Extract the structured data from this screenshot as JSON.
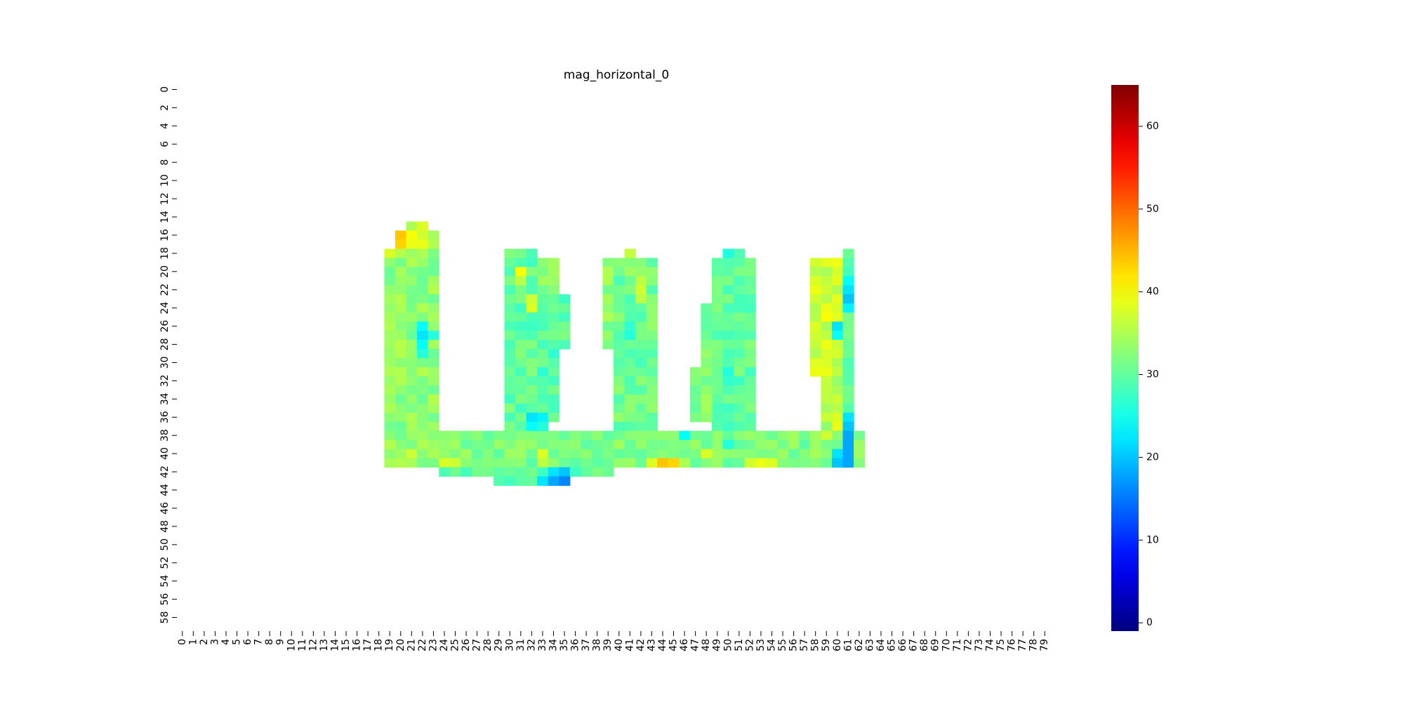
{
  "chart_data": {
    "type": "heatmap",
    "title": "mag_horizontal_0",
    "xlabel": "",
    "ylabel": "",
    "rows": 60,
    "cols": 80,
    "x_tick_labels": [
      "0",
      "1",
      "2",
      "3",
      "4",
      "5",
      "6",
      "7",
      "8",
      "9",
      "10",
      "11",
      "12",
      "13",
      "14",
      "15",
      "16",
      "17",
      "18",
      "19",
      "20",
      "21",
      "22",
      "23",
      "24",
      "25",
      "26",
      "27",
      "28",
      "29",
      "30",
      "31",
      "32",
      "33",
      "34",
      "35",
      "36",
      "37",
      "38",
      "39",
      "40",
      "41",
      "42",
      "43",
      "44",
      "45",
      "46",
      "47",
      "48",
      "49",
      "50",
      "51",
      "52",
      "53",
      "54",
      "55",
      "56",
      "57",
      "58",
      "59",
      "60",
      "61",
      "62",
      "63",
      "64",
      "65",
      "66",
      "67",
      "68",
      "69",
      "70",
      "71",
      "72",
      "73",
      "74",
      "75",
      "76",
      "77",
      "78",
      "79"
    ],
    "y_tick_labels": [
      "0",
      "2",
      "4",
      "6",
      "8",
      "10",
      "12",
      "14",
      "16",
      "18",
      "20",
      "22",
      "24",
      "26",
      "28",
      "30",
      "32",
      "34",
      "36",
      "38",
      "40",
      "42",
      "44",
      "46",
      "48",
      "50",
      "52",
      "54",
      "56",
      "58"
    ],
    "colormap": "jet",
    "colorbar": {
      "min": -1,
      "max": 65,
      "ticks": [
        0,
        10,
        20,
        30,
        40,
        50,
        60
      ]
    },
    "default_value": 31,
    "cells_note": "sparse list of [row, col, value]; regions listed by row ranges",
    "regions": [
      {
        "rows": [
          15,
          15
        ],
        "cols": [
          21,
          22
        ],
        "value": 37
      },
      {
        "rows": [
          16,
          17
        ],
        "cols": [
          20,
          23
        ],
        "value": 37
      },
      {
        "rows": [
          18,
          41
        ],
        "cols": [
          19,
          23
        ],
        "value": 33
      },
      {
        "rows": [
          18,
          37
        ],
        "cols": [
          30,
          32
        ],
        "value": 30
      },
      {
        "rows": [
          19,
          22
        ],
        "cols": [
          33,
          34
        ],
        "value": 32
      },
      {
        "rows": [
          23,
          28
        ],
        "cols": [
          33,
          35
        ],
        "value": 30
      },
      {
        "rows": [
          29,
          36
        ],
        "cols": [
          33,
          34
        ],
        "value": 29
      },
      {
        "rows": [
          19,
          28
        ],
        "cols": [
          39,
          40
        ],
        "value": 33
      },
      {
        "rows": [
          18,
          18
        ],
        "cols": [
          41,
          41
        ],
        "value": 34
      },
      {
        "rows": [
          19,
          40
        ],
        "cols": [
          40,
          43
        ],
        "value": 31
      },
      {
        "rows": [
          18,
          18
        ],
        "cols": [
          50,
          51
        ],
        "value": 28
      },
      {
        "rows": [
          19,
          40
        ],
        "cols": [
          49,
          52
        ],
        "value": 30
      },
      {
        "rows": [
          24,
          30
        ],
        "cols": [
          48,
          48
        ],
        "value": 31
      },
      {
        "rows": [
          31,
          36
        ],
        "cols": [
          47,
          48
        ],
        "value": 32
      },
      {
        "rows": [
          19,
          31
        ],
        "cols": [
          58,
          60
        ],
        "value": 37
      },
      {
        "rows": [
          32,
          40
        ],
        "cols": [
          59,
          60
        ],
        "value": 35
      },
      {
        "rows": [
          18,
          40
        ],
        "cols": [
          61,
          61
        ],
        "value": 30
      },
      {
        "rows": [
          38,
          41
        ],
        "cols": [
          24,
          62
        ],
        "value": 32
      },
      {
        "rows": [
          41,
          42
        ],
        "cols": [
          24,
          39
        ],
        "value": 31
      },
      {
        "rows": [
          42,
          42
        ],
        "cols": [
          26,
          39
        ],
        "value": 30
      },
      {
        "rows": [
          43,
          43
        ],
        "cols": [
          29,
          35
        ],
        "value": 30
      }
    ],
    "cells": [
      [
        16,
        20,
        44
      ],
      [
        17,
        20,
        43
      ],
      [
        16,
        21,
        40
      ],
      [
        18,
        19,
        38
      ],
      [
        26,
        22,
        24
      ],
      [
        27,
        22,
        22
      ],
      [
        28,
        22,
        24
      ],
      [
        29,
        22,
        26
      ],
      [
        27,
        23,
        26
      ],
      [
        20,
        31,
        40
      ],
      [
        21,
        31,
        36
      ],
      [
        23,
        32,
        37
      ],
      [
        24,
        32,
        38
      ],
      [
        36,
        32,
        22
      ],
      [
        36,
        33,
        23
      ],
      [
        37,
        32,
        24
      ],
      [
        37,
        33,
        26
      ],
      [
        40,
        20,
        34
      ],
      [
        40,
        21,
        37
      ],
      [
        41,
        24,
        38
      ],
      [
        41,
        25,
        37
      ],
      [
        40,
        33,
        38
      ],
      [
        41,
        33,
        36
      ],
      [
        42,
        34,
        36
      ],
      [
        42,
        35,
        38
      ],
      [
        43,
        33,
        22
      ],
      [
        43,
        34,
        18
      ],
      [
        43,
        35,
        16
      ],
      [
        42,
        34,
        22
      ],
      [
        42,
        35,
        20
      ],
      [
        41,
        44,
        44
      ],
      [
        41,
        45,
        43
      ],
      [
        41,
        43,
        38
      ],
      [
        41,
        46,
        35
      ],
      [
        40,
        48,
        38
      ],
      [
        40,
        49,
        37
      ],
      [
        41,
        53,
        39
      ],
      [
        41,
        54,
        38
      ],
      [
        41,
        52,
        37
      ],
      [
        38,
        46,
        24
      ],
      [
        21,
        61,
        24
      ],
      [
        22,
        61,
        22
      ],
      [
        23,
        61,
        20
      ],
      [
        24,
        61,
        23
      ],
      [
        26,
        60,
        22
      ],
      [
        27,
        60,
        24
      ],
      [
        36,
        61,
        22
      ],
      [
        37,
        61,
        20
      ],
      [
        38,
        61,
        18
      ],
      [
        39,
        61,
        18
      ],
      [
        40,
        61,
        18
      ],
      [
        41,
        61,
        18
      ],
      [
        40,
        60,
        22
      ],
      [
        41,
        60,
        20
      ],
      [
        31,
        50,
        26
      ],
      [
        32,
        50,
        27
      ],
      [
        39,
        50,
        26
      ],
      [
        40,
        49,
        34
      ],
      [
        20,
        41,
        34
      ],
      [
        21,
        42,
        36
      ],
      [
        22,
        42,
        37
      ],
      [
        23,
        42,
        36
      ],
      [
        27,
        41,
        26
      ],
      [
        26,
        41,
        27
      ],
      [
        31,
        40,
        30
      ],
      [
        30,
        42,
        28
      ],
      [
        33,
        42,
        29
      ],
      [
        26,
        58,
        38
      ],
      [
        25,
        59,
        40
      ],
      [
        24,
        59,
        39
      ],
      [
        27,
        59,
        36
      ],
      [
        36,
        60,
        38
      ],
      [
        37,
        60,
        39
      ],
      [
        38,
        59,
        37
      ]
    ]
  }
}
